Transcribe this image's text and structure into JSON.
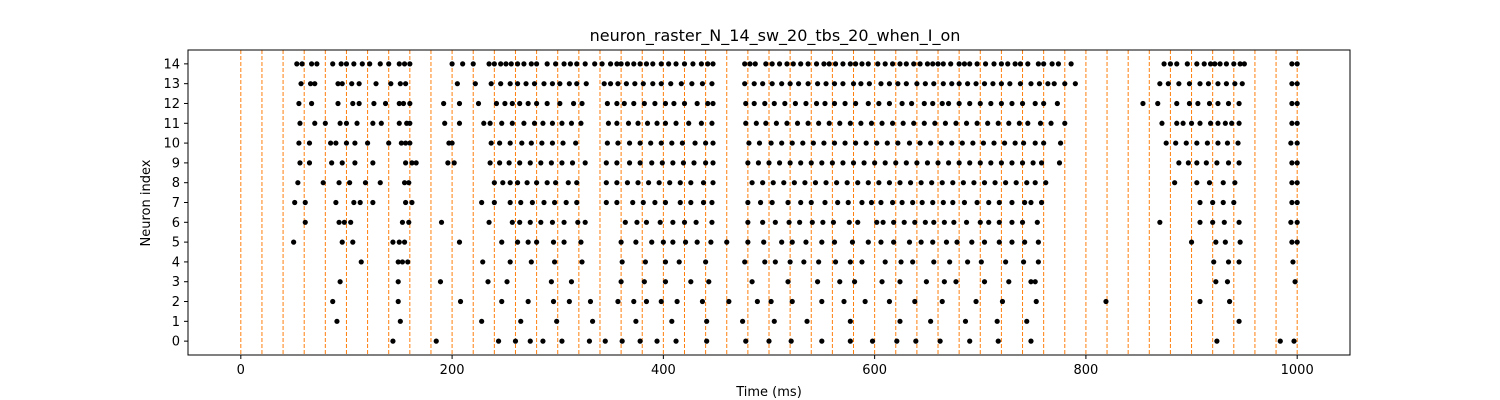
{
  "chart_data": {
    "type": "scatter",
    "title": "neuron_raster_N_14_sw_20_tbs_20_when_I_on",
    "xlabel": "Time (ms)",
    "ylabel": "Neuron index",
    "xlim": [
      -50,
      1050
    ],
    "ylim": [
      -0.7,
      14.7
    ],
    "x_ticks": [
      0,
      200,
      400,
      600,
      800,
      1000
    ],
    "y_ticks": [
      0,
      1,
      2,
      3,
      4,
      5,
      6,
      7,
      8,
      9,
      10,
      11,
      12,
      13,
      14
    ],
    "grid": false,
    "marker_color": "#000000",
    "vline_color": "#ff7f0e",
    "vlines": [
      0,
      20,
      40,
      60,
      80,
      100,
      120,
      140,
      160,
      180,
      200,
      220,
      240,
      260,
      280,
      300,
      320,
      340,
      360,
      380,
      400,
      420,
      440,
      460,
      480,
      500,
      520,
      540,
      560,
      580,
      600,
      620,
      640,
      660,
      680,
      700,
      720,
      740,
      760,
      780,
      800,
      820,
      840,
      860,
      880,
      900,
      920,
      940,
      960,
      980,
      1000
    ],
    "series": [
      {
        "neuron": 14,
        "spikes": [
          53,
          58,
          67,
          72,
          87,
          95,
          100,
          107,
          115,
          122,
          132,
          140,
          150,
          155,
          160,
          200,
          210,
          220,
          235,
          240,
          246,
          251,
          256,
          262,
          268,
          275,
          280,
          290,
          298,
          306,
          312,
          318,
          326,
          335,
          342,
          350,
          356,
          360,
          366,
          372,
          378,
          384,
          390,
          398,
          405,
          412,
          420,
          428,
          436,
          442,
          447,
          477,
          482,
          487,
          497,
          503,
          510,
          517,
          523,
          530,
          537,
          545,
          552,
          557,
          563,
          570,
          577,
          582,
          588,
          594,
          603,
          610,
          617,
          624,
          630,
          637,
          643,
          650,
          655,
          660,
          665,
          672,
          680,
          685,
          690,
          697,
          705,
          713,
          720,
          726,
          733,
          738,
          745,
          755,
          760,
          768,
          774,
          786,
          874,
          880,
          886,
          896,
          905,
          912,
          918,
          922,
          927,
          933,
          940,
          946,
          950,
          995,
          1000
        ]
      },
      {
        "neuron": 13,
        "spikes": [
          57,
          66,
          70,
          92,
          96,
          105,
          112,
          128,
          142,
          151,
          156,
          205,
          222,
          237,
          246,
          255,
          262,
          270,
          278,
          287,
          295,
          302,
          311,
          318,
          327,
          344,
          350,
          357,
          365,
          373,
          381,
          390,
          398,
          407,
          417,
          427,
          437,
          446,
          477,
          486,
          494,
          503,
          512,
          520,
          528,
          537,
          546,
          554,
          562,
          570,
          580,
          587,
          595,
          606,
          614,
          622,
          630,
          640,
          648,
          656,
          665,
          673,
          680,
          688,
          696,
          704,
          712,
          720,
          728,
          738,
          748,
          756,
          764,
          770,
          780,
          790,
          870,
          878,
          888,
          898,
          908,
          916,
          925,
          933,
          941,
          948,
          995,
          1000
        ]
      },
      {
        "neuron": 12,
        "spikes": [
          55,
          67,
          92,
          106,
          112,
          126,
          137,
          150,
          154,
          160,
          192,
          207,
          225,
          242,
          250,
          257,
          264,
          272,
          280,
          290,
          302,
          315,
          323,
          347,
          356,
          363,
          372,
          382,
          392,
          402,
          410,
          420,
          432,
          442,
          447,
          478,
          486,
          496,
          505,
          515,
          525,
          535,
          545,
          553,
          562,
          572,
          582,
          594,
          604,
          614,
          626,
          635,
          647,
          655,
          664,
          670,
          680,
          690,
          700,
          710,
          720,
          730,
          740,
          752,
          760,
          773,
          854,
          868,
          886,
          898,
          906,
          917,
          925,
          935,
          945,
          995,
          1000
        ]
      },
      {
        "neuron": 11,
        "spikes": [
          56,
          70,
          80,
          94,
          100,
          110,
          125,
          133,
          150,
          157,
          160,
          193,
          207,
          230,
          236,
          247,
          257,
          268,
          278,
          286,
          295,
          304,
          313,
          322,
          348,
          356,
          367,
          376,
          385,
          394,
          402,
          412,
          424,
          436,
          446,
          478,
          488,
          497,
          507,
          517,
          527,
          537,
          547,
          557,
          567,
          577,
          587,
          597,
          607,
          617,
          627,
          637,
          647,
          657,
          667,
          677,
          687,
          697,
          707,
          717,
          727,
          737,
          745,
          757,
          767,
          780,
          872,
          886,
          892,
          900,
          908,
          918,
          925,
          932,
          938,
          945,
          995,
          1000
        ]
      },
      {
        "neuron": 10,
        "spikes": [
          55,
          65,
          85,
          90,
          100,
          108,
          120,
          140,
          152,
          156,
          160,
          197,
          200,
          237,
          245,
          255,
          266,
          275,
          285,
          295,
          305,
          317,
          347,
          357,
          368,
          378,
          388,
          398,
          408,
          418,
          430,
          440,
          447,
          481,
          491,
          502,
          512,
          522,
          532,
          542,
          552,
          562,
          572,
          582,
          592,
          602,
          612,
          622,
          633,
          643,
          653,
          663,
          673,
          683,
          693,
          703,
          713,
          723,
          733,
          741,
          752,
          760,
          776,
          876,
          885,
          895,
          905,
          915,
          925,
          934,
          944,
          994,
          1000
        ]
      },
      {
        "neuron": 9,
        "spikes": [
          56,
          65,
          86,
          96,
          108,
          125,
          156,
          162,
          166,
          196,
          202,
          236,
          245,
          254,
          264,
          274,
          284,
          294,
          304,
          314,
          326,
          346,
          356,
          368,
          378,
          389,
          399,
          409,
          419,
          429,
          440,
          447,
          480,
          490,
          500,
          510,
          520,
          530,
          540,
          550,
          560,
          570,
          580,
          590,
          600,
          610,
          620,
          630,
          640,
          650,
          660,
          670,
          680,
          690,
          700,
          710,
          720,
          730,
          740,
          750,
          758,
          775,
          888,
          897,
          905,
          914,
          924,
          935,
          945,
          995,
          1000
        ]
      },
      {
        "neuron": 8,
        "spikes": [
          54,
          78,
          93,
          103,
          118,
          132,
          155,
          159,
          240,
          248,
          255,
          262,
          271,
          280,
          290,
          298,
          310,
          318,
          346,
          356,
          366,
          376,
          386,
          396,
          406,
          416,
          426,
          438,
          447,
          484,
          494,
          504,
          514,
          524,
          534,
          544,
          554,
          564,
          574,
          584,
          594,
          604,
          614,
          624,
          634,
          644,
          654,
          664,
          674,
          684,
          694,
          704,
          714,
          724,
          734,
          744,
          752,
          762,
          884,
          905,
          917,
          930,
          941,
          995,
          1000
        ]
      },
      {
        "neuron": 7,
        "spikes": [
          51,
          61,
          90,
          107,
          113,
          125,
          156,
          162,
          228,
          240,
          255,
          265,
          276,
          287,
          297,
          308,
          318,
          346,
          356,
          371,
          381,
          392,
          402,
          416,
          426,
          438,
          446,
          480,
          492,
          503,
          518,
          530,
          540,
          553,
          565,
          575,
          588,
          597,
          606,
          617,
          626,
          636,
          645,
          655,
          665,
          674,
          685,
          697,
          708,
          718,
          730,
          742,
          748,
          758,
          908,
          920,
          930,
          940,
          995,
          1000
        ]
      },
      {
        "neuron": 6,
        "spikes": [
          61,
          93,
          98,
          104,
          153,
          159,
          190,
          235,
          257,
          264,
          274,
          284,
          295,
          306,
          319,
          326,
          364,
          375,
          384,
          397,
          409,
          420,
          431,
          446,
          480,
          494,
          506,
          519,
          529,
          541,
          551,
          561,
          576,
          584,
          602,
          608,
          618,
          628,
          638,
          648,
          656,
          666,
          675,
          687,
          700,
          708,
          718,
          730,
          740,
          754,
          870,
          908,
          920,
          931,
          945,
          994,
          1000
        ]
      },
      {
        "neuron": 5,
        "spikes": [
          50,
          96,
          106,
          144,
          150,
          155,
          207,
          247,
          262,
          272,
          280,
          296,
          306,
          322,
          360,
          374,
          389,
          400,
          409,
          421,
          432,
          445,
          460,
          480,
          495,
          512,
          522,
          535,
          550,
          562,
          579,
          594,
          606,
          618,
          633,
          644,
          655,
          668,
          678,
          692,
          704,
          718,
          730,
          742,
          755,
          900,
          923,
          932,
          946,
          995,
          1000
        ]
      },
      {
        "neuron": 4,
        "spikes": [
          114,
          149,
          153,
          158,
          229,
          255,
          275,
          297,
          323,
          361,
          383,
          402,
          415,
          440,
          477,
          496,
          506,
          520,
          533,
          547,
          563,
          577,
          588,
          610,
          625,
          636,
          656,
          671,
          688,
          701,
          724,
          741,
          755,
          921,
          935,
          945,
          996
        ]
      },
      {
        "neuron": 3,
        "spikes": [
          94,
          149,
          189,
          234,
          252,
          294,
          313,
          360,
          382,
          402,
          426,
          443,
          484,
          518,
          546,
          567,
          581,
          607,
          624,
          649,
          666,
          677,
          704,
          727,
          748,
          752,
          923,
          934,
          998
        ]
      },
      {
        "neuron": 2,
        "spikes": [
          87,
          149,
          208,
          247,
          272,
          296,
          311,
          331,
          357,
          372,
          384,
          398,
          413,
          437,
          462,
          489,
          502,
          522,
          550,
          571,
          591,
          614,
          638,
          664,
          696,
          721,
          753,
          819,
          908,
          936
        ]
      },
      {
        "neuron": 1,
        "spikes": [
          91,
          151,
          228,
          265,
          299,
          333,
          374,
          408,
          441,
          475,
          505,
          536,
          577,
          624,
          653,
          686,
          716,
          744,
          945
        ]
      },
      {
        "neuron": 0,
        "spikes": [
          144,
          185,
          244,
          260,
          274,
          286,
          304,
          330,
          345,
          361,
          378,
          394,
          412,
          441,
          478,
          500,
          521,
          550,
          577,
          598,
          621,
          639,
          662,
          690,
          717,
          748,
          924,
          984,
          997
        ]
      }
    ]
  }
}
